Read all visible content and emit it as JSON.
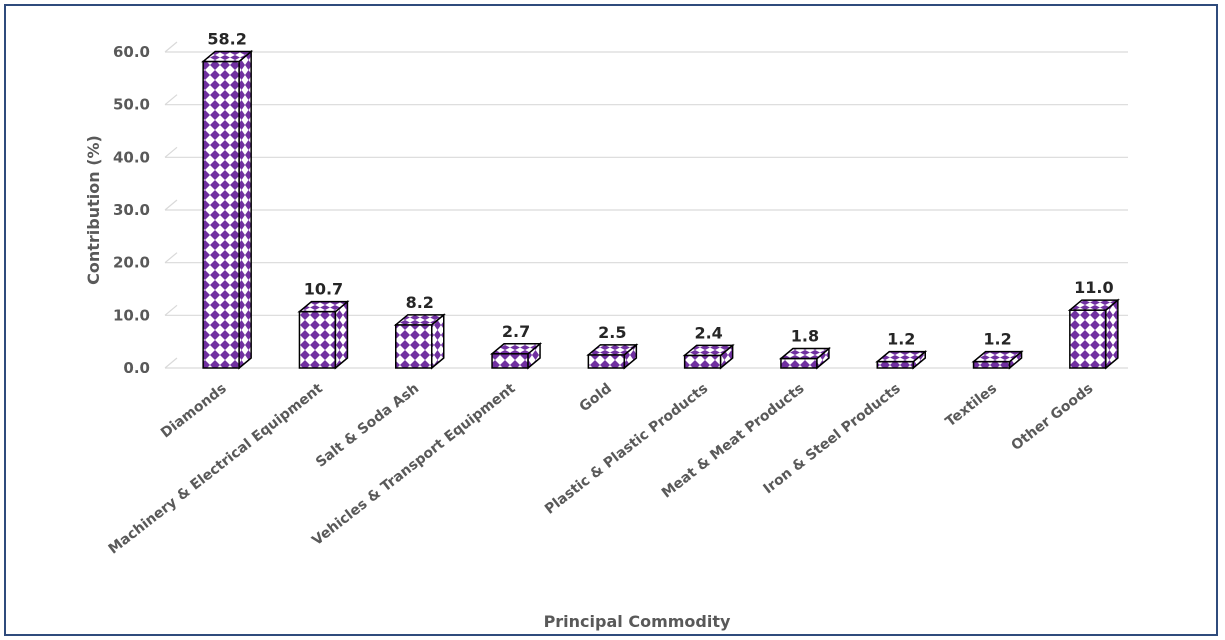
{
  "chart_data": {
    "type": "bar",
    "categories": [
      "Diamonds",
      "Machinery & Electrical Equipment",
      "Salt & Soda Ash",
      "Vehicles & Transport Equipment",
      "Gold",
      "Plastic & Plastic Products",
      "Meat & Meat Products",
      "Iron & Steel Products",
      "Textiles",
      "Other Goods"
    ],
    "series": [
      {
        "values": [
          58.2,
          10.7,
          8.2,
          2.7,
          2.5,
          2.4,
          1.8,
          1.2,
          1.2,
          11.0
        ]
      }
    ],
    "data_labels": [
      "58.2",
      "10.7",
      "8.2",
      "2.7",
      "2.5",
      "2.4",
      "1.8",
      "1.2",
      "1.2",
      "11.0"
    ],
    "xlabel": "Principal Commodity",
    "ylabel": "Contribution (%)",
    "ylim": [
      0,
      60
    ],
    "yticks": [
      "0.0",
      "10.0",
      "20.0",
      "30.0",
      "40.0",
      "50.0",
      "60.0"
    ],
    "grid": true,
    "legend": "none",
    "bar_style": "3d-patterned",
    "colors": {
      "pattern": "#7030a0",
      "outline": "#000000",
      "grid": "#d9d9d9",
      "text": "#595959",
      "frame": "#2f4b7c"
    }
  }
}
